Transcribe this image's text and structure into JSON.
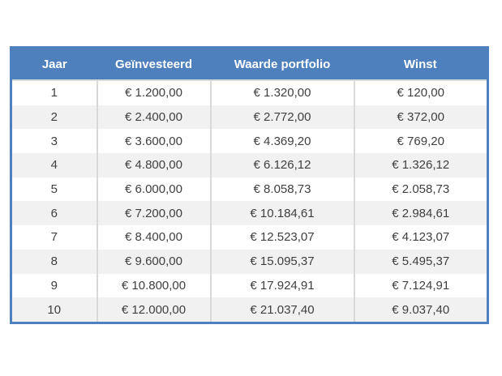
{
  "table": {
    "columns": [
      "Jaar",
      "Geïnvesteerd",
      "Waarde portfolio",
      "Winst"
    ],
    "rows": [
      {
        "jaar": "1",
        "geinvesteerd": "€ 1.200,00",
        "waarde": "€ 1.320,00",
        "winst": "€ 120,00"
      },
      {
        "jaar": "2",
        "geinvesteerd": "€ 2.400,00",
        "waarde": "€ 2.772,00",
        "winst": "€ 372,00"
      },
      {
        "jaar": "3",
        "geinvesteerd": "€ 3.600,00",
        "waarde": "€ 4.369,20",
        "winst": "€ 769,20"
      },
      {
        "jaar": "4",
        "geinvesteerd": "€ 4.800,00",
        "waarde": "€ 6.126,12",
        "winst": "€ 1.326,12"
      },
      {
        "jaar": "5",
        "geinvesteerd": "€ 6.000,00",
        "waarde": "€ 8.058,73",
        "winst": "€ 2.058,73"
      },
      {
        "jaar": "6",
        "geinvesteerd": "€ 7.200,00",
        "waarde": "€ 10.184,61",
        "winst": "€ 2.984,61"
      },
      {
        "jaar": "7",
        "geinvesteerd": "€ 8.400,00",
        "waarde": "€ 12.523,07",
        "winst": "€ 4.123,07"
      },
      {
        "jaar": "8",
        "geinvesteerd": "€ 9.600,00",
        "waarde": "€ 15.095,37",
        "winst": "€ 5.495,37"
      },
      {
        "jaar": "9",
        "geinvesteerd": "€ 10.800,00",
        "waarde": "€ 17.924,91",
        "winst": "€ 7.124,91"
      },
      {
        "jaar": "10",
        "geinvesteerd": "€ 12.000,00",
        "waarde": "€ 21.037,40",
        "winst": "€ 9.037,40"
      }
    ],
    "colors": {
      "header_bg": "#4E80BD",
      "header_text": "#FFFFFF",
      "outer_border": "#4E80BD",
      "stripe": "#F1F1F1",
      "divider": "#D9D9D9",
      "body_text": "#3F3F3F"
    }
  },
  "chart_data": {
    "type": "table",
    "title": "",
    "columns": [
      "Jaar",
      "Geïnvesteerd",
      "Waarde portfolio",
      "Winst"
    ],
    "currency": "EUR",
    "jaar": [
      1,
      2,
      3,
      4,
      5,
      6,
      7,
      8,
      9,
      10
    ],
    "geinvesteerd_eur": [
      1200.0,
      2400.0,
      3600.0,
      4800.0,
      6000.0,
      7200.0,
      8400.0,
      9600.0,
      10800.0,
      12000.0
    ],
    "waarde_portfolio_eur": [
      1320.0,
      2772.0,
      4369.2,
      6126.12,
      8058.73,
      10184.61,
      12523.07,
      15095.37,
      17924.91,
      21037.4
    ],
    "winst_eur": [
      120.0,
      372.0,
      769.2,
      1326.12,
      2058.73,
      2984.61,
      4123.07,
      5495.37,
      7124.91,
      9037.4
    ]
  }
}
